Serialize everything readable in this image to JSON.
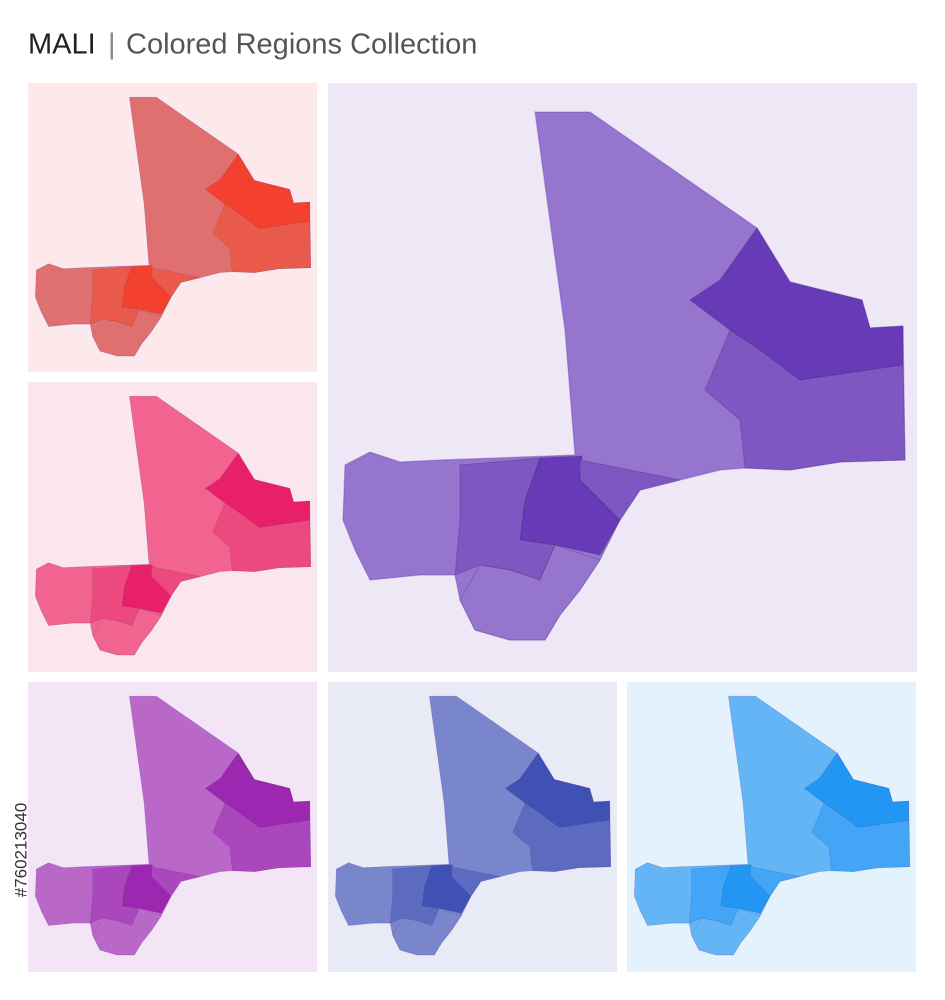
{
  "header": {
    "title": "MALI",
    "separator": "|",
    "subtitle": "Colored Regions Collection"
  },
  "stock_id": "#760213040"
}
